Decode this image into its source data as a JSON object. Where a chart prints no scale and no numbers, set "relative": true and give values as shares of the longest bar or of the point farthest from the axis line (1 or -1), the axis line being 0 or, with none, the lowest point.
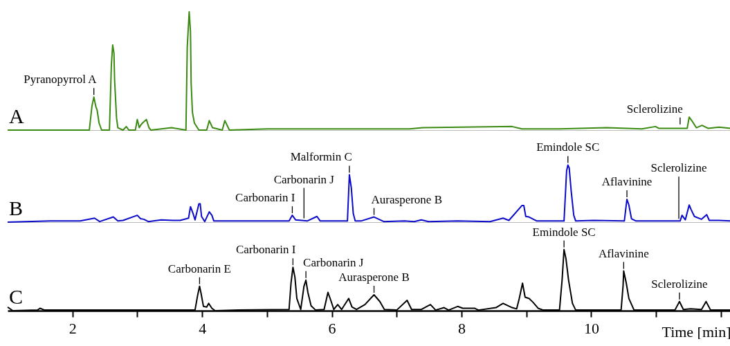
{
  "chart_data": [
    {
      "type": "line",
      "relative": true,
      "xlim": [
        1,
        12.15
      ],
      "tick_labels": false,
      "x": [
        1,
        2.26,
        2.3,
        2.33,
        2.36,
        2.38,
        2.41,
        2.45,
        2.57,
        2.6,
        2.62,
        2.64,
        2.65,
        2.68,
        2.7,
        2.78,
        2.83,
        2.87,
        2.97,
        3.0,
        3.03,
        3.05,
        3.08,
        3.14,
        3.18,
        3.21,
        3.53,
        3.75,
        3.77,
        3.8,
        3.82,
        3.83,
        3.85,
        3.88,
        3.95,
        4.07,
        4.11,
        4.16,
        4.31,
        4.35,
        4.42,
        5.01,
        5.32,
        5.46,
        5.93,
        6.07,
        6.31,
        7.2,
        7.4,
        8.78,
        8.93,
        9.51,
        10.24,
        10.78,
        10.99,
        11.04,
        11.48,
        11.51,
        11.55,
        11.62,
        11.71,
        11.8,
        11.97,
        12.15
      ],
      "series": [
        {
          "name": "A",
          "color": "#3a8a12",
          "values": [
            0,
            0,
            0.2,
            0.28,
            0.2,
            0.17,
            0.06,
            0,
            0,
            0.55,
            0.72,
            0.65,
            0.42,
            0.1,
            0.02,
            0,
            0.03,
            0,
            0,
            0.09,
            0.02,
            0.04,
            0.06,
            0.09,
            0.02,
            0,
            0.02,
            0,
            0.7,
            1.0,
            0.83,
            0.4,
            0.15,
            0.06,
            0,
            0,
            0.08,
            0.02,
            0,
            0.08,
            0,
            0.01,
            0.01,
            0.01,
            0.01,
            0.01,
            0.01,
            0.01,
            0.02,
            0.03,
            0.01,
            0.01,
            0.02,
            0.01,
            0.03,
            0.015,
            0.015,
            0.11,
            0.08,
            0.02,
            0.04,
            0.015,
            0.025,
            0.015
          ]
        }
      ],
      "annotations": [
        {
          "text": "Pyranopyrrol A",
          "x": 2.33,
          "y": 0.28
        },
        {
          "text": "Sclerolizine",
          "x": 11.37,
          "y": 0.03
        }
      ]
    },
    {
      "type": "line",
      "relative": true,
      "xlim": [
        1,
        12.15
      ],
      "tick_labels": false,
      "x": [
        1,
        1.66,
        2.12,
        2.34,
        2.42,
        2.63,
        2.7,
        2.78,
        3.0,
        3.05,
        3.1,
        3.17,
        3.37,
        3.55,
        3.66,
        3.79,
        3.82,
        3.86,
        3.89,
        3.95,
        3.97,
        3.99,
        4.04,
        4.11,
        4.15,
        4.18,
        4.36,
        4.65,
        4.76,
        5.34,
        5.39,
        5.44,
        5.53,
        5.62,
        5.77,
        5.82,
        5.93,
        6.09,
        6.24,
        6.27,
        6.3,
        6.33,
        6.36,
        6.45,
        6.65,
        6.8,
        7.12,
        7.27,
        7.38,
        7.49,
        7.94,
        8.44,
        8.64,
        8.73,
        8.93,
        8.96,
        8.99,
        9.04,
        9.16,
        9.4,
        9.58,
        9.62,
        9.64,
        9.66,
        9.69,
        9.73,
        9.76,
        10.04,
        10.51,
        10.55,
        10.58,
        10.62,
        10.69,
        11.37,
        11.4,
        11.45,
        11.51,
        11.54,
        11.59,
        11.7,
        11.78,
        11.82,
        11.97,
        12.15
      ],
      "series": [
        {
          "name": "B",
          "color": "#0a0ac8",
          "values": [
            0,
            0.02,
            0.02,
            0.07,
            0.01,
            0.09,
            0.02,
            0.03,
            0.12,
            0.06,
            0.05,
            0.01,
            0.04,
            0.03,
            0.03,
            0.07,
            0.27,
            0.15,
            0.04,
            0.32,
            0.32,
            0.1,
            0.01,
            0.18,
            0.12,
            0.02,
            0.02,
            0.02,
            0.02,
            0.02,
            0.12,
            0.04,
            0.03,
            0.02,
            0.1,
            0.02,
            0.02,
            0.02,
            0.02,
            0.83,
            0.6,
            0.15,
            0.02,
            0.02,
            0.09,
            0.01,
            0.02,
            0.01,
            0.04,
            0.01,
            0.02,
            0.01,
            0.07,
            0.03,
            0.29,
            0.29,
            0.1,
            0.09,
            0.02,
            0.02,
            0.02,
            0.9,
            1.0,
            0.95,
            0.55,
            0.12,
            0.02,
            0.03,
            0.02,
            0.4,
            0.3,
            0.06,
            0.02,
            0.02,
            0.12,
            0.04,
            0.3,
            0.22,
            0.1,
            0.05,
            0.13,
            0.03,
            0.03,
            0.02
          ]
        }
      ],
      "annotations": [
        {
          "text": "Carbonarin I",
          "x": 5.39,
          "y": 0.12
        },
        {
          "text": "Carbonarin J",
          "x": 5.57,
          "y": 0.03
        },
        {
          "text": "Malformin C",
          "x": 6.27,
          "y": 0.83
        },
        {
          "text": "Aurasperone B",
          "x": 6.65,
          "y": 0.09
        },
        {
          "text": "Emindole SC",
          "x": 9.64,
          "y": 1.0
        },
        {
          "text": "Aflavinine",
          "x": 10.55,
          "y": 0.4
        },
        {
          "text": "Sclerolizine",
          "x": 11.35,
          "y": 0.02
        }
      ]
    },
    {
      "type": "line",
      "relative": true,
      "xlim": [
        1,
        12.15
      ],
      "tick_labels": "x",
      "xlabel": "Time [min]",
      "xticks": [
        2,
        {
          "value": 3,
          "label": null
        },
        4,
        {
          "value": 5,
          "label": null
        },
        6,
        {
          "value": 7,
          "label": null
        },
        8,
        {
          "value": 9,
          "label": null
        },
        10,
        {
          "value": 11,
          "label": null
        },
        {
          "value": 12,
          "label": null
        }
      ],
      "x": [
        1,
        1.08,
        1.46,
        1.5,
        1.57,
        2.42,
        2.78,
        3.03,
        3.53,
        3.89,
        3.93,
        3.96,
        3.98,
        4.02,
        4.07,
        4.1,
        4.15,
        4.2,
        4.56,
        5.34,
        5.37,
        5.4,
        5.43,
        5.46,
        5.52,
        5.57,
        5.6,
        5.63,
        5.68,
        5.75,
        5.88,
        5.94,
        5.99,
        6.03,
        6.09,
        6.15,
        6.26,
        6.31,
        6.38,
        6.51,
        6.65,
        6.74,
        6.81,
        7.0,
        7.16,
        7.23,
        7.38,
        7.52,
        7.6,
        7.73,
        7.8,
        7.94,
        8.02,
        8.2,
        8.26,
        8.53,
        8.64,
        8.78,
        8.85,
        8.89,
        8.94,
        8.98,
        9.04,
        9.1,
        9.18,
        9.26,
        9.51,
        9.55,
        9.58,
        9.61,
        9.65,
        9.71,
        9.76,
        10.46,
        10.49,
        10.5,
        10.54,
        10.58,
        10.66,
        11.29,
        11.36,
        11.42,
        11.53,
        11.7,
        11.77,
        11.84,
        12.15
      ],
      "series": [
        {
          "name": "C",
          "color": "#000000",
          "values": [
            0.06,
            0,
            0.01,
            0.04,
            0.01,
            0.01,
            0.01,
            0.01,
            0.01,
            0.01,
            0.25,
            0.4,
            0.3,
            0.07,
            0.06,
            0.12,
            0.04,
            0,
            0.01,
            0.02,
            0.45,
            0.71,
            0.55,
            0.2,
            0.02,
            0.4,
            0.5,
            0.3,
            0.08,
            0.01,
            0.02,
            0.3,
            0.15,
            0.02,
            0.1,
            0.02,
            0.2,
            0.06,
            0.02,
            0.1,
            0.26,
            0.15,
            0.02,
            0.01,
            0.17,
            0.02,
            0.02,
            0.1,
            0.01,
            0.05,
            0.01,
            0.07,
            0.04,
            0.04,
            0.01,
            0.05,
            0.12,
            0.05,
            0.03,
            0.2,
            0.45,
            0.22,
            0.2,
            0.14,
            0.04,
            0.01,
            0.01,
            0.5,
            1.0,
            0.85,
            0.5,
            0.12,
            0.01,
            0.01,
            0.4,
            0.65,
            0.45,
            0.2,
            0.01,
            0.01,
            0.15,
            0.02,
            0.03,
            0.02,
            0.15,
            0.01,
            0.01
          ]
        }
      ],
      "annotations": [
        {
          "text": "Carbonarin E",
          "x": 3.96,
          "y": 0.4
        },
        {
          "text": "Carbonarin I",
          "x": 5.4,
          "y": 0.71
        },
        {
          "text": "Carbonarin J",
          "x": 5.6,
          "y": 0.5
        },
        {
          "text": "Aurasperone B",
          "x": 6.65,
          "y": 0.26
        },
        {
          "text": "Emindole SC",
          "x": 9.58,
          "y": 1.0
        },
        {
          "text": "Aflavinine",
          "x": 10.5,
          "y": 0.65
        },
        {
          "text": "Sclerolizine",
          "x": 11.36,
          "y": 0.15
        }
      ]
    }
  ]
}
